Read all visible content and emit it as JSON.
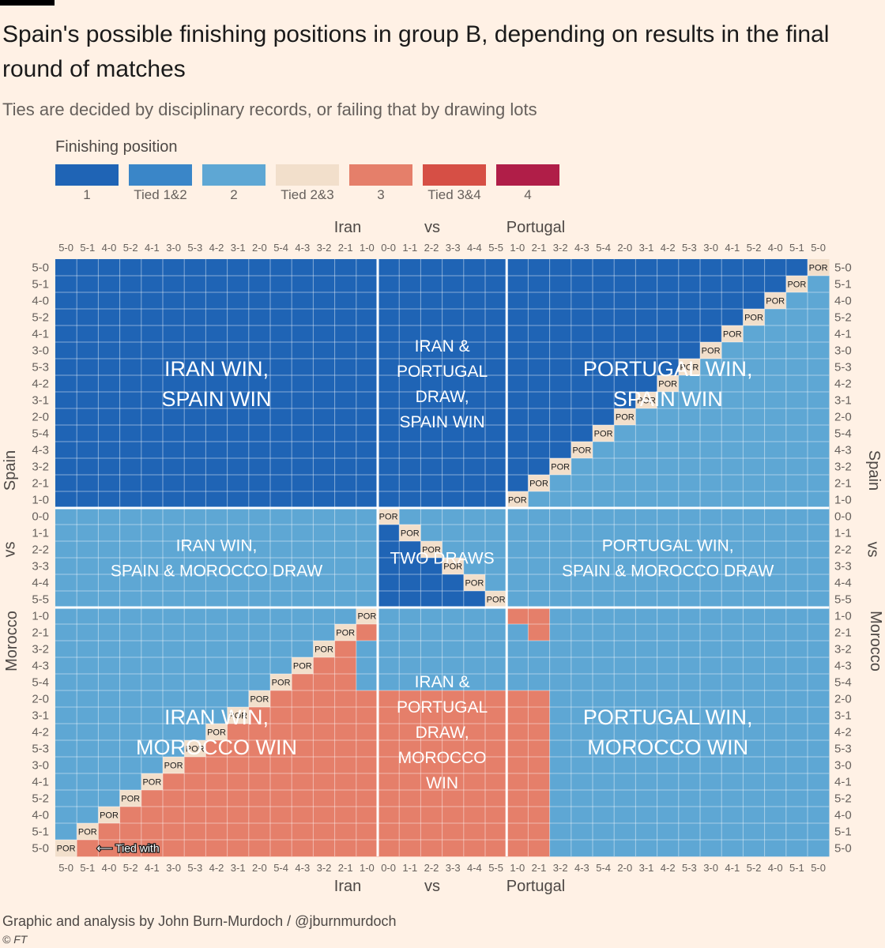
{
  "header": {
    "title": "Spain's possible finishing positions in group B, depending on results in the final round of matches",
    "subtitle": "Ties are decided by disciplinary records, or failing that by drawing lots"
  },
  "legend": {
    "title": "Finishing position",
    "items": [
      {
        "label": "1",
        "color": "#1F64B5"
      },
      {
        "label": "Tied 1&2",
        "color": "#3A86C8"
      },
      {
        "label": "2",
        "color": "#5EA7D4"
      },
      {
        "label": "Tied 2&3",
        "color": "#F2DFCB"
      },
      {
        "label": "3",
        "color": "#E57F6A"
      },
      {
        "label": "Tied 3&4",
        "color": "#D64F45"
      },
      {
        "label": "4",
        "color": "#B01E48"
      }
    ]
  },
  "axes": {
    "x_words": {
      "left": "Iran",
      "mid": "vs",
      "right": "Portugal"
    },
    "y_words": {
      "top": "Spain",
      "mid": "vs",
      "bottom": "Morocco"
    }
  },
  "chart_data": {
    "type": "heatmap",
    "title": "Spain's possible finishing positions in group B",
    "x_categories": [
      "5-0",
      "5-1",
      "4-0",
      "5-2",
      "4-1",
      "3-0",
      "5-3",
      "4-2",
      "3-1",
      "2-0",
      "5-4",
      "4-3",
      "3-2",
      "2-1",
      "1-0",
      "0-0",
      "1-1",
      "2-2",
      "3-3",
      "4-4",
      "5-5",
      "1-0",
      "2-1",
      "3-2",
      "4-3",
      "5-4",
      "2-0",
      "3-1",
      "4-2",
      "5-3",
      "3-0",
      "4-1",
      "5-2",
      "4-0",
      "5-1",
      "5-0"
    ],
    "y_categories": [
      "5-0",
      "5-1",
      "4-0",
      "5-2",
      "4-1",
      "3-0",
      "5-3",
      "4-2",
      "3-1",
      "2-0",
      "5-4",
      "4-3",
      "3-2",
      "2-1",
      "1-0",
      "0-0",
      "1-1",
      "2-2",
      "3-3",
      "4-4",
      "5-5",
      "1-0",
      "2-1",
      "3-2",
      "4-3",
      "5-4",
      "2-0",
      "3-1",
      "4-2",
      "5-3",
      "3-0",
      "4-1",
      "5-2",
      "4-0",
      "5-1",
      "5-0"
    ],
    "x_label": "Iran vs Portugal",
    "y_label": "Spain vs Morocco",
    "position_codes": {
      "1": "1",
      "2": "Tied 1&2",
      "3": "2",
      "4": "Tied 2&3",
      "5": "3",
      "6": "Tied 3&4",
      "7": "4"
    },
    "cells": [
      "111111111111111111111111111111111113",
      "111111111111111111111111111111111133",
      "111111111111111111111111111111111333",
      "111111111111111111111111111111113333",
      "111111111111111111111111111111133333",
      "111111111111111111111111111111333333",
      "111111111111111111111111111113333333",
      "111111111111111111111111111133333333",
      "111111111111111111111111111333333333",
      "111111111111111111111111113333333333",
      "111111111111111111111111133333333333",
      "111111111111111111111111333333333333",
      "111111111111111111111113333333333333",
      "111111111111111111111133333333333333",
      "111111111111111111111333333333333333",
      "333333333333333333333333333333333333",
      "333333333333333133333333333333333333",
      "333333333333333113333333333333333333",
      "333333333333333111333333333333333333",
      "333333333333333111133333333333333333",
      "333333333333333111113333333333333333",
      "333333333333335333333553333333333333",
      "333333333333355333333353333333333333",
      "333333333333553333333333333333333333",
      "333333333335553333333333333333333333",
      "333333333355553333333333333333333333",
      "333333333555555555555553333333333333",
      "333333335555555555555553333333333333",
      "333333355555555555555553333333333333",
      "333333555555555555555553333333333333",
      "333335555555555555555553333333333333",
      "333355555555555555555553333333333333",
      "333555555555555555555553333333333333",
      "335555555555555555555553333333333333",
      "355555555555555555555553333333333333",
      "555555555555555555555553333333333333"
    ],
    "annotations": [
      {
        "text": "POR",
        "row": 0,
        "col": 35
      },
      {
        "text": "POR",
        "row": 1,
        "col": 34
      },
      {
        "text": "POR",
        "row": 2,
        "col": 33
      },
      {
        "text": "POR",
        "row": 3,
        "col": 32
      },
      {
        "text": "POR",
        "row": 4,
        "col": 31
      },
      {
        "text": "POR",
        "row": 5,
        "col": 30
      },
      {
        "text": "POR",
        "row": 6,
        "col": 29
      },
      {
        "text": "POR",
        "row": 7,
        "col": 28
      },
      {
        "text": "POR",
        "row": 8,
        "col": 27
      },
      {
        "text": "POR",
        "row": 9,
        "col": 26
      },
      {
        "text": "POR",
        "row": 10,
        "col": 25
      },
      {
        "text": "POR",
        "row": 11,
        "col": 24
      },
      {
        "text": "POR",
        "row": 12,
        "col": 23
      },
      {
        "text": "POR",
        "row": 13,
        "col": 22
      },
      {
        "text": "POR",
        "row": 14,
        "col": 21
      },
      {
        "text": "POR",
        "row": 15,
        "col": 15
      },
      {
        "text": "POR",
        "row": 16,
        "col": 16
      },
      {
        "text": "POR",
        "row": 17,
        "col": 17
      },
      {
        "text": "POR",
        "row": 18,
        "col": 18
      },
      {
        "text": "POR",
        "row": 19,
        "col": 19
      },
      {
        "text": "POR",
        "row": 20,
        "col": 20
      },
      {
        "text": "POR",
        "row": 21,
        "col": 14
      },
      {
        "text": "POR",
        "row": 22,
        "col": 13
      },
      {
        "text": "POR",
        "row": 23,
        "col": 12
      },
      {
        "text": "POR",
        "row": 24,
        "col": 11
      },
      {
        "text": "POR",
        "row": 25,
        "col": 10
      },
      {
        "text": "POR",
        "row": 26,
        "col": 9
      },
      {
        "text": "POR",
        "row": 27,
        "col": 8
      },
      {
        "text": "POR",
        "row": 28,
        "col": 7
      },
      {
        "text": "POR",
        "row": 29,
        "col": 6
      },
      {
        "text": "POR",
        "row": 30,
        "col": 5
      },
      {
        "text": "POR",
        "row": 31,
        "col": 4
      },
      {
        "text": "POR",
        "row": 32,
        "col": 3
      },
      {
        "text": "POR",
        "row": 33,
        "col": 2
      },
      {
        "text": "POR",
        "row": 34,
        "col": 1
      },
      {
        "text": "POR",
        "row": 35,
        "col": 0
      }
    ],
    "regions": [
      {
        "name": "region-iran-win-spain-win",
        "lines": [
          "IRAN WIN,",
          "SPAIN WIN"
        ],
        "size": "large",
        "rows": [
          0,
          14
        ],
        "cols": [
          0,
          14
        ]
      },
      {
        "name": "region-draw-spain-win",
        "lines": [
          "IRAN &",
          "PORTUGAL",
          "DRAW,",
          "SPAIN WIN"
        ],
        "size": "medium",
        "rows": [
          0,
          14
        ],
        "cols": [
          15,
          20
        ]
      },
      {
        "name": "region-portugal-win-spain-win",
        "lines": [
          "PORTUGAL WIN,",
          "SPAIN WIN"
        ],
        "size": "large",
        "rows": [
          0,
          14
        ],
        "cols": [
          21,
          35
        ]
      },
      {
        "name": "region-iran-win-spain-morocco-draw",
        "lines": [
          "IRAN WIN,",
          "SPAIN & MOROCCO DRAW"
        ],
        "size": "medium",
        "rows": [
          15,
          20
        ],
        "cols": [
          0,
          14
        ]
      },
      {
        "name": "region-two-draws",
        "lines": [
          "TWO DRAWS"
        ],
        "size": "medium",
        "rows": [
          15,
          20
        ],
        "cols": [
          15,
          20
        ]
      },
      {
        "name": "region-portugal-win-spain-morocco-draw",
        "lines": [
          "PORTUGAL WIN,",
          "SPAIN & MOROCCO DRAW"
        ],
        "size": "medium",
        "rows": [
          15,
          20
        ],
        "cols": [
          21,
          35
        ]
      },
      {
        "name": "region-iran-win-morocco-win",
        "lines": [
          "IRAN WIN,",
          "MOROCCO WIN"
        ],
        "size": "large",
        "rows": [
          21,
          35
        ],
        "cols": [
          0,
          14
        ]
      },
      {
        "name": "region-draw-morocco-win",
        "lines": [
          "IRAN &",
          "PORTUGAL",
          "DRAW,",
          "MOROCCO",
          "WIN"
        ],
        "size": "medium",
        "rows": [
          21,
          35
        ],
        "cols": [
          15,
          20
        ]
      },
      {
        "name": "region-portugal-win-morocco-win",
        "lines": [
          "PORTUGAL WIN,",
          "MOROCCO WIN"
        ],
        "size": "large",
        "rows": [
          21,
          35
        ],
        "cols": [
          21,
          35
        ]
      }
    ],
    "tied_note": {
      "text": "⟵ Tied with",
      "row": 35,
      "col": 1
    }
  },
  "footer": {
    "credit": "Graphic and analysis by John Burn-Murdoch / @jburnmurdoch",
    "copyright": "© FT"
  }
}
